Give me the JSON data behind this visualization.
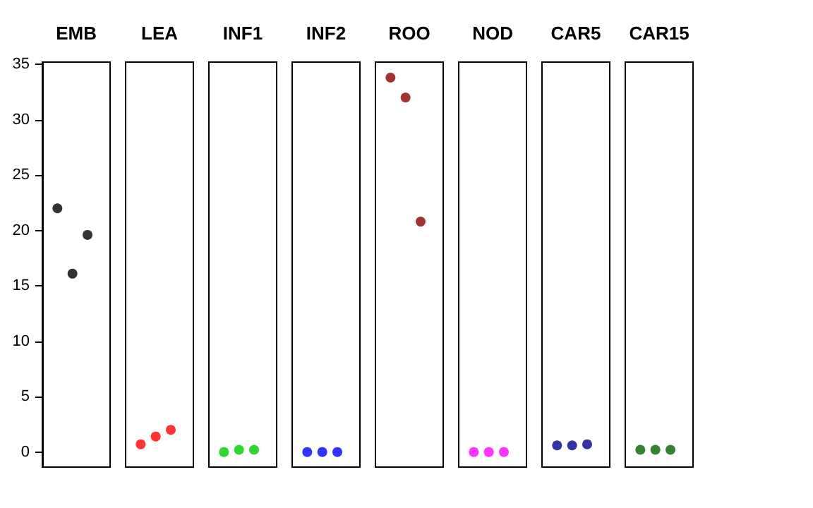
{
  "chart_data": {
    "type": "scatter",
    "categories": [
      "EMB",
      "LEA",
      "INF1",
      "INF2",
      "ROO",
      "NOD",
      "CAR5",
      "CAR15"
    ],
    "series": [
      {
        "values": [
          22.0,
          0.7,
          0.0,
          0.0,
          33.8,
          0.0,
          0.6,
          0.2
        ],
        "colors": [
          "#000000",
          "#ff0000",
          "#00cd00",
          "#0000ff",
          "#8b0000",
          "#ff00ff",
          "#00008b",
          "#006400"
        ]
      },
      {
        "values": [
          16.1,
          1.4,
          0.2,
          0.0,
          32.0,
          0.0,
          0.6,
          0.2
        ],
        "colors": [
          "#000000",
          "#ff0000",
          "#00cd00",
          "#0000ff",
          "#8b0000",
          "#ff00ff",
          "#00008b",
          "#006400"
        ]
      },
      {
        "values": [
          19.6,
          2.0,
          0.2,
          0.0,
          20.8,
          0.0,
          0.7,
          0.2
        ],
        "colors": [
          "#000000",
          "#ff0000",
          "#00cd00",
          "#0000ff",
          "#8b0000",
          "#ff00ff",
          "#00008b",
          "#006400"
        ]
      }
    ],
    "ylim": [
      -1.36,
      35.2
    ],
    "yticks": [
      0,
      5,
      10,
      15,
      20,
      25,
      30,
      35
    ],
    "marker": "circle",
    "grid": false
  }
}
